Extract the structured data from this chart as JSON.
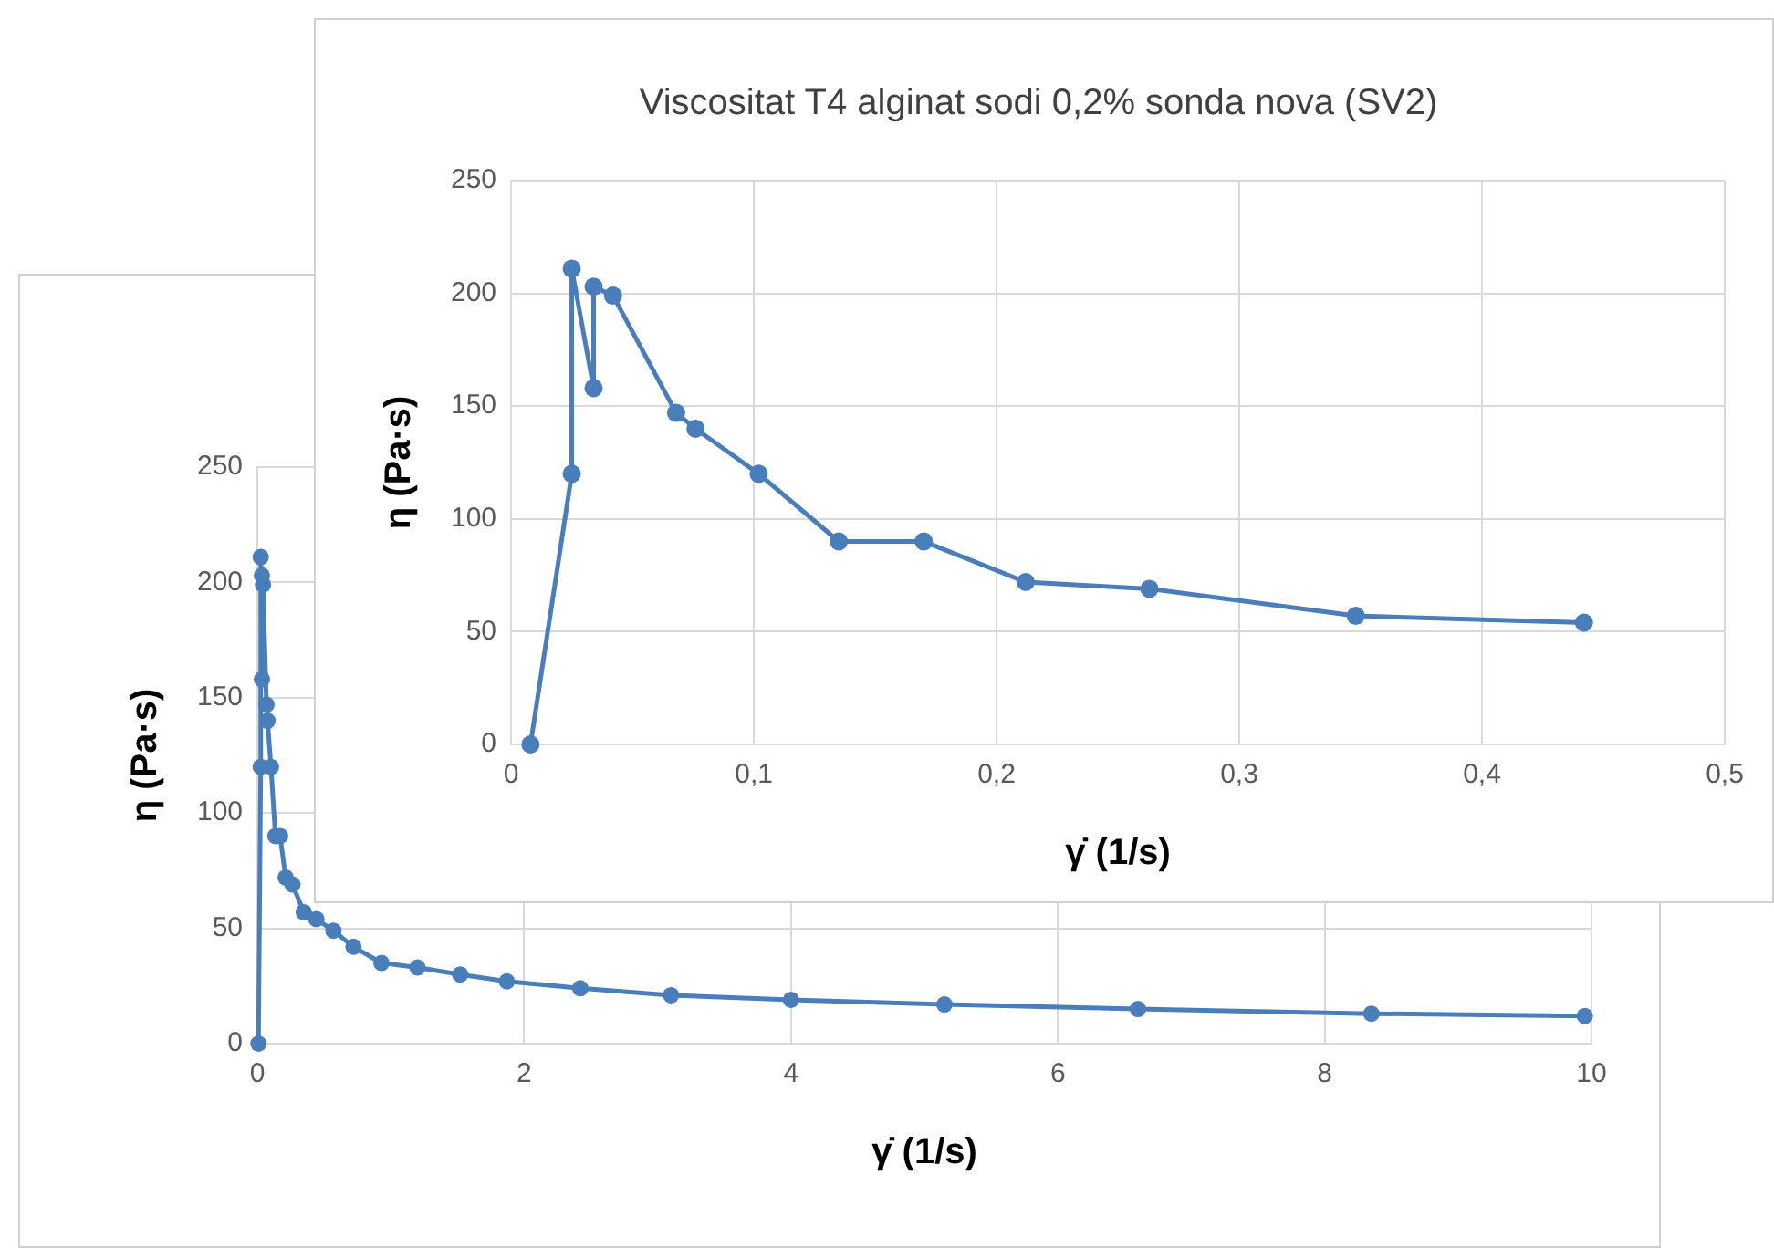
{
  "chart_data": [
    {
      "type": "line",
      "title": "Viscositat T4 alginat sodi 0,2% sonda nova (SV2)",
      "xlabel": "γ̇ (1/s)",
      "ylabel": "η (Pa·s)",
      "x": [
        0.008,
        0.025,
        0.025,
        0.034,
        0.034,
        0.042,
        0.068,
        0.076,
        0.102,
        0.135,
        0.17,
        0.212,
        0.263,
        0.348,
        0.442
      ],
      "series": [
        {
          "color": "#4a7ebb",
          "values": [
            0,
            120,
            211,
            158,
            203,
            199,
            147,
            140,
            120,
            90,
            90,
            72,
            69,
            57,
            54
          ]
        }
      ],
      "xlim": [
        0,
        0.5
      ],
      "xticks": [
        0,
        {
          "value": 0.1,
          "label": "0,1"
        },
        {
          "value": 0.2,
          "label": "0,2"
        },
        {
          "value": 0.3,
          "label": "0,3"
        },
        {
          "value": 0.4,
          "label": "0,4"
        },
        {
          "value": 0.5,
          "label": "0,5"
        }
      ],
      "ylim": [
        0,
        250
      ],
      "yticks": [
        0,
        50,
        100,
        150,
        200,
        250
      ],
      "grid": true,
      "legend": false,
      "marker": "circle",
      "line_style": "solid"
    },
    {
      "type": "line",
      "xlabel": "γ̇ (1/s)",
      "ylabel": "η (Pa·s)",
      "x": [
        0.008,
        0.025,
        0.025,
        0.034,
        0.034,
        0.042,
        0.068,
        0.076,
        0.102,
        0.135,
        0.17,
        0.212,
        0.263,
        0.348,
        0.442,
        0.57,
        0.72,
        0.93,
        1.2,
        1.52,
        1.87,
        2.42,
        3.1,
        4.0,
        5.15,
        6.6,
        8.35,
        9.95
      ],
      "series": [
        {
          "color": "#4a7ebb",
          "values": [
            0,
            120,
            211,
            158,
            203,
            199,
            147,
            140,
            120,
            90,
            90,
            72,
            69,
            57,
            54,
            49,
            42,
            35,
            33,
            30,
            27,
            24,
            21,
            19,
            17,
            15,
            13,
            12
          ]
        }
      ],
      "xlim": [
        0,
        10
      ],
      "xticks": [
        0,
        2,
        4,
        6,
        8,
        10
      ],
      "ylim": [
        0,
        250
      ],
      "yticks": [
        0,
        50,
        100,
        150,
        200,
        250
      ],
      "grid": true,
      "legend": false,
      "marker": "circle",
      "line_style": "solid"
    }
  ]
}
